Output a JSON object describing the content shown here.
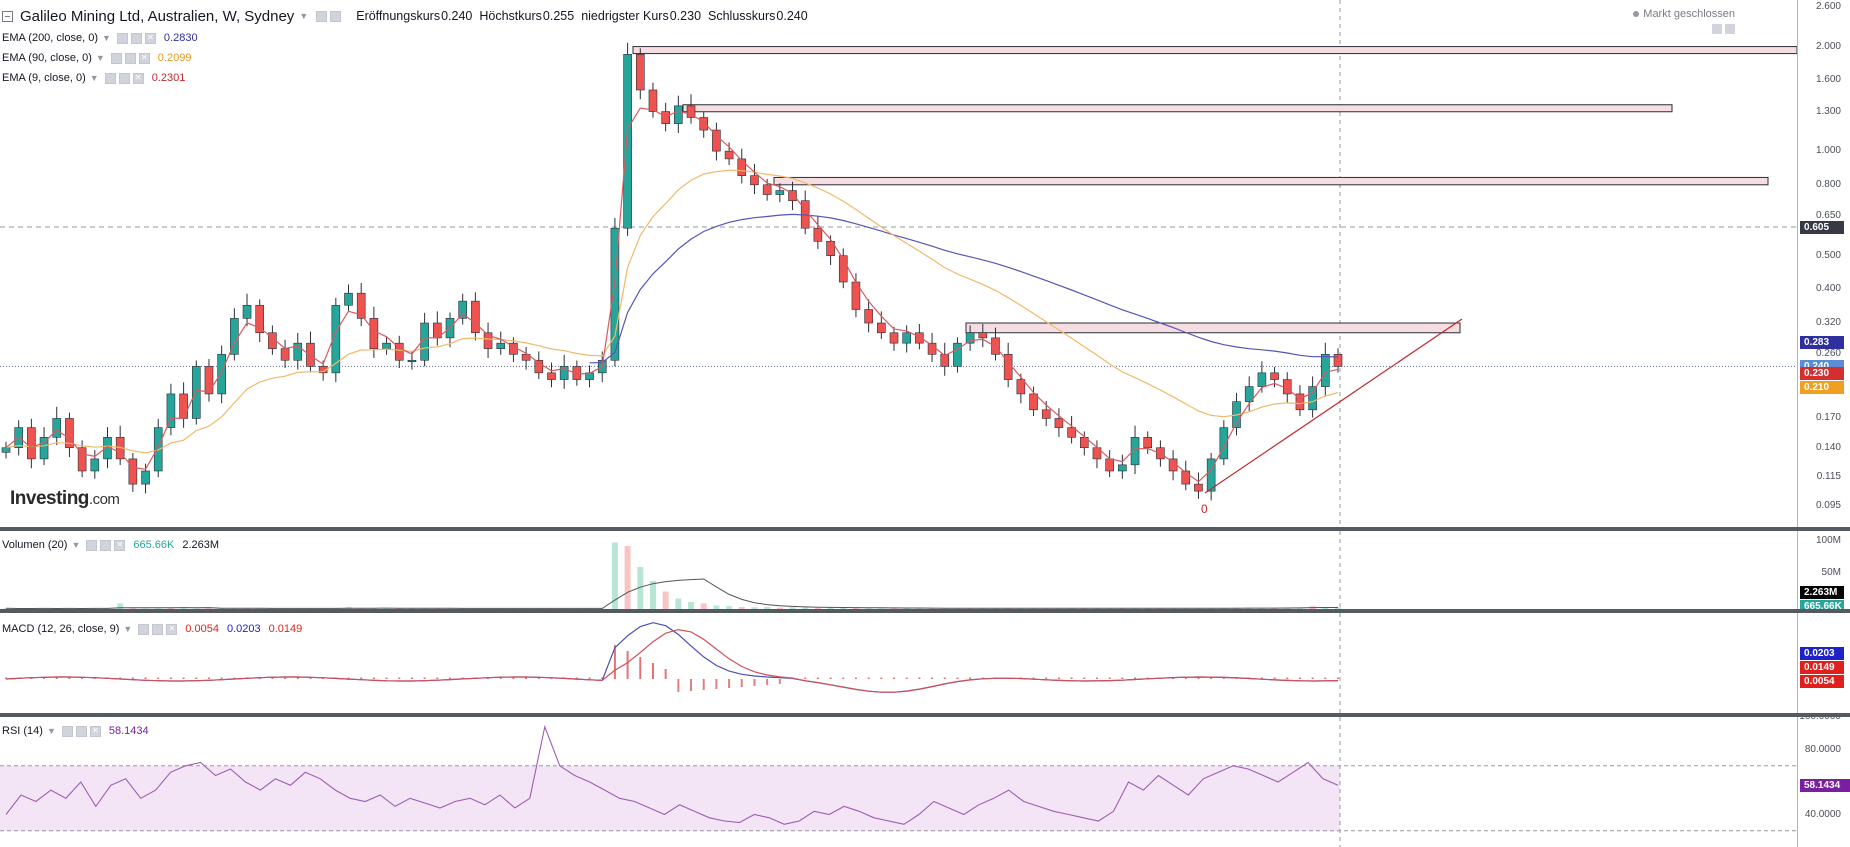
{
  "header": {
    "symbol": "Galileo Mining Ltd, Australien, W, Sydney",
    "open_label": "Eröffnungskurs",
    "open_value": "0.240",
    "high_label": "Höchstkurs",
    "high_value": "0.255",
    "low_label": "niedrigster Kurs",
    "low_value": "0.230",
    "close_label": "Schlusskurs",
    "close_value": "0.240",
    "market_status": "Markt geschlossen"
  },
  "logo": {
    "brand": "Investing",
    "suffix": ".com"
  },
  "indicators": {
    "ema200": {
      "name": "EMA (200, close, 0)",
      "value": "0.2830",
      "color": "#2f2fa0"
    },
    "ema90": {
      "name": "EMA (90, close, 0)",
      "value": "0.2099",
      "color": "#f0a020"
    },
    "ema9": {
      "name": "EMA (9, close, 0)",
      "value": "0.2301",
      "color": "#c2272d"
    },
    "volume": {
      "name": "Volumen (20)",
      "value1": "665.66K",
      "value2": "2.263M"
    },
    "macd": {
      "name": "MACD (12, 26, close, 9)",
      "v1": "0.0054",
      "v2": "0.0203",
      "v3": "0.0149"
    },
    "rsi": {
      "name": "RSI (14)",
      "value": "58.1434"
    }
  },
  "price_axis": {
    "ticks": [
      "2.600",
      "2.000",
      "1.600",
      "1.300",
      "1.000",
      "0.800",
      "0.650",
      "0.500",
      "0.400",
      "0.320",
      "0.260",
      "0.210",
      "0.170",
      "0.140",
      "0.115",
      "0.095"
    ],
    "tags": [
      {
        "text": "0.605",
        "bg": "#363a45"
      },
      {
        "text": "0.283",
        "bg": "#2f2fa0"
      },
      {
        "text": "0.240",
        "bg": "#5b8cd6"
      },
      {
        "text": "0.230",
        "bg": "#d32f2f"
      },
      {
        "text": "0.210",
        "bg": "#f0a020"
      }
    ]
  },
  "volume_axis": {
    "ticks": [
      "100M",
      "50M"
    ],
    "tags": [
      {
        "text": "2.263M",
        "bg": "#000000"
      },
      {
        "text": "665.66K",
        "bg": "#26a69a"
      }
    ]
  },
  "macd_axis": {
    "tags": [
      {
        "text": "0.0203",
        "bg": "#1e22c8"
      },
      {
        "text": "0.0149",
        "bg": "#e0201c"
      },
      {
        "text": "0.0054",
        "bg": "#e0201c"
      }
    ]
  },
  "rsi_axis": {
    "ticks": [
      "100.0000",
      "80.0000",
      "40.0000"
    ],
    "tags": [
      {
        "text": "58.1434",
        "bg": "#7b1fa2"
      }
    ]
  },
  "annotation": {
    "zero_label": "0"
  },
  "colors": {
    "up": "#26a69a",
    "down": "#ef5350",
    "zone_fill": "#f6dde2",
    "zone_border": "#2a2e39",
    "trendline": "#c2272d",
    "rsi_band": "#f3e5f5",
    "rsi_line": "#9c5db5",
    "macd_line": "#4a4fb5",
    "signal_line": "#d0505a"
  },
  "chart_data": [
    {
      "type": "candlestick",
      "title": "Galileo Mining Ltd, Australien, W, Sydney",
      "scale": "log",
      "ylim": [
        0.085,
        2.6
      ],
      "series": [
        {
          "name": "Price",
          "values": [
            0.14,
            0.16,
            0.13,
            0.15,
            0.17,
            0.14,
            0.12,
            0.13,
            0.15,
            0.13,
            0.11,
            0.12,
            0.16,
            0.2,
            0.17,
            0.24,
            0.2,
            0.26,
            0.33,
            0.36,
            0.3,
            0.27,
            0.25,
            0.28,
            0.24,
            0.23,
            0.36,
            0.39,
            0.33,
            0.27,
            0.28,
            0.25,
            0.25,
            0.32,
            0.29,
            0.33,
            0.37,
            0.3,
            0.27,
            0.28,
            0.26,
            0.25,
            0.23,
            0.22,
            0.24,
            0.22,
            0.23,
            0.25,
            0.6,
            1.9,
            1.5,
            1.3,
            1.2,
            1.35,
            1.25,
            1.15,
            1.0,
            0.95,
            0.85,
            0.8,
            0.75,
            0.77,
            0.72,
            0.6,
            0.55,
            0.5,
            0.42,
            0.35,
            0.32,
            0.3,
            0.28,
            0.3,
            0.28,
            0.26,
            0.24,
            0.28,
            0.3,
            0.29,
            0.26,
            0.22,
            0.2,
            0.18,
            0.17,
            0.16,
            0.15,
            0.14,
            0.13,
            0.12,
            0.125,
            0.15,
            0.14,
            0.13,
            0.12,
            0.11,
            0.105,
            0.13,
            0.16,
            0.19,
            0.21,
            0.23,
            0.22,
            0.2,
            0.18,
            0.21,
            0.26,
            0.24
          ]
        },
        {
          "name": "EMA (200, close, 0)",
          "value": 0.283
        },
        {
          "name": "EMA (90, close, 0)",
          "value": 0.2099
        },
        {
          "name": "EMA (9, close, 0)",
          "value": 0.2301
        }
      ],
      "zones": [
        [
          1.95,
          2.0
        ],
        [
          1.3,
          1.36
        ],
        [
          0.8,
          0.84
        ],
        [
          0.3,
          0.32
        ]
      ],
      "horizontal_levels": [
        0.605,
        0.24
      ]
    },
    {
      "type": "bar",
      "title": "Volumen (20)",
      "ylim": [
        0,
        100
      ],
      "series": [
        {
          "name": "Volume (M)",
          "values": [
            1,
            0.5,
            0.7,
            1,
            0.6,
            1,
            0.7,
            1.2,
            0.8,
            8,
            1,
            0.6,
            1,
            2,
            1.2,
            0.7,
            1,
            0.9,
            0.6,
            1,
            1.2,
            0.8,
            0.6,
            0.9,
            1.1,
            0.7,
            1,
            3,
            1.2,
            0.9,
            1,
            0.7,
            0.8,
            1,
            0.9,
            1.1,
            0.8,
            1,
            0.9,
            0.7,
            0.8,
            1,
            0.9,
            0.7,
            1,
            0.8,
            0.9,
            1,
            95,
            90,
            60,
            40,
            25,
            15,
            10,
            8,
            5,
            4,
            3,
            2.5,
            3,
            2,
            2.5,
            2,
            1.5,
            2,
            1.8,
            1.5,
            1.2,
            1,
            1.1,
            1.5,
            1,
            1.2,
            1,
            1.1,
            1,
            0.9,
            1,
            1.2,
            1,
            0.8,
            0.9,
            1,
            1.1,
            1.2,
            1,
            0.9,
            1,
            1.1,
            1.2,
            0.9,
            1,
            0.8,
            1,
            1.2,
            1.5,
            2,
            1.5,
            1.2,
            1.5,
            1.8,
            2.2,
            4,
            2.5,
            2.26
          ]
        }
      ]
    },
    {
      "type": "line",
      "title": "MACD (12, 26, close, 9)",
      "series": [
        {
          "name": "MACD",
          "values": [
            0.0054
          ]
        },
        {
          "name": "Signal",
          "values": [
            0.0149
          ]
        }
      ]
    },
    {
      "type": "line",
      "title": "RSI (14)",
      "ylim": [
        20,
        100
      ],
      "series": [
        {
          "name": "RSI",
          "values": [
            40,
            52,
            48,
            55,
            50,
            60,
            45,
            58,
            62,
            50,
            55,
            66,
            70,
            72,
            64,
            68,
            60,
            55,
            62,
            58,
            66,
            62,
            55,
            50,
            48,
            52,
            45,
            50,
            47,
            44,
            48,
            50,
            46,
            52,
            44,
            50,
            94,
            70,
            64,
            60,
            55,
            50,
            48,
            44,
            40,
            46,
            42,
            38,
            36,
            35,
            40,
            38,
            34,
            36,
            42,
            40,
            45,
            42,
            38,
            36,
            34,
            40,
            48,
            44,
            40,
            46,
            50,
            55,
            48,
            45,
            42,
            40,
            38,
            36,
            42,
            60,
            55,
            64,
            58,
            52,
            62,
            66,
            70,
            68,
            64,
            60,
            66,
            72,
            62,
            58
          ]
        }
      ]
    }
  ]
}
